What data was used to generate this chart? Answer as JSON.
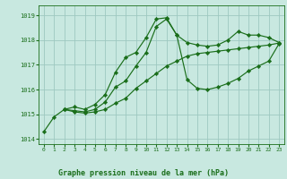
{
  "xlabel": "Graphe pression niveau de la mer (hPa)",
  "xlim": [
    -0.5,
    23.5
  ],
  "ylim": [
    1013.8,
    1019.4
  ],
  "yticks": [
    1014,
    1015,
    1016,
    1017,
    1018,
    1019
  ],
  "xticks": [
    0,
    1,
    2,
    3,
    4,
    5,
    6,
    7,
    8,
    9,
    10,
    11,
    12,
    13,
    14,
    15,
    16,
    17,
    18,
    19,
    20,
    21,
    22,
    23
  ],
  "bg_color": "#c8e8e0",
  "grid_color": "#9dc8c0",
  "line_color": "#1a6e1a",
  "tick_color": "#1a6e1a",
  "series": [
    {
      "x": [
        0,
        1,
        2,
        3,
        4,
        5,
        6,
        7,
        8,
        9,
        10,
        11,
        12,
        13,
        14,
        15,
        16,
        17,
        18,
        19,
        20,
        21,
        22,
        23
      ],
      "y": [
        1014.3,
        1014.9,
        1015.2,
        1015.3,
        1015.2,
        1015.4,
        1015.8,
        1016.7,
        1017.3,
        1017.5,
        1018.1,
        1018.85,
        1018.9,
        1018.2,
        1017.9,
        1017.8,
        1017.75,
        1017.8,
        1018.0,
        1018.35,
        1018.2,
        1018.2,
        1018.1,
        1017.9
      ]
    },
    {
      "x": [
        2,
        3,
        4,
        5,
        6,
        7,
        8,
        9,
        10,
        11,
        12,
        13,
        14,
        15,
        16,
        17,
        18,
        19,
        20,
        21,
        22,
        23
      ],
      "y": [
        1015.2,
        1015.15,
        1015.1,
        1015.2,
        1015.5,
        1016.1,
        1016.35,
        1016.95,
        1017.5,
        1018.55,
        1018.85,
        1018.2,
        1016.4,
        1016.05,
        1016.0,
        1016.1,
        1016.25,
        1016.45,
        1016.75,
        1016.95,
        1017.15,
        1017.85
      ]
    },
    {
      "x": [
        2,
        3,
        4,
        5,
        6,
        7,
        8,
        9,
        10,
        11,
        12,
        13,
        14,
        15,
        16,
        17,
        18,
        19,
        20,
        21,
        22,
        23
      ],
      "y": [
        1015.2,
        1015.1,
        1015.05,
        1015.1,
        1015.2,
        1015.45,
        1015.65,
        1016.05,
        1016.35,
        1016.65,
        1016.95,
        1017.15,
        1017.35,
        1017.45,
        1017.5,
        1017.55,
        1017.6,
        1017.65,
        1017.7,
        1017.75,
        1017.8,
        1017.88
      ]
    }
  ]
}
